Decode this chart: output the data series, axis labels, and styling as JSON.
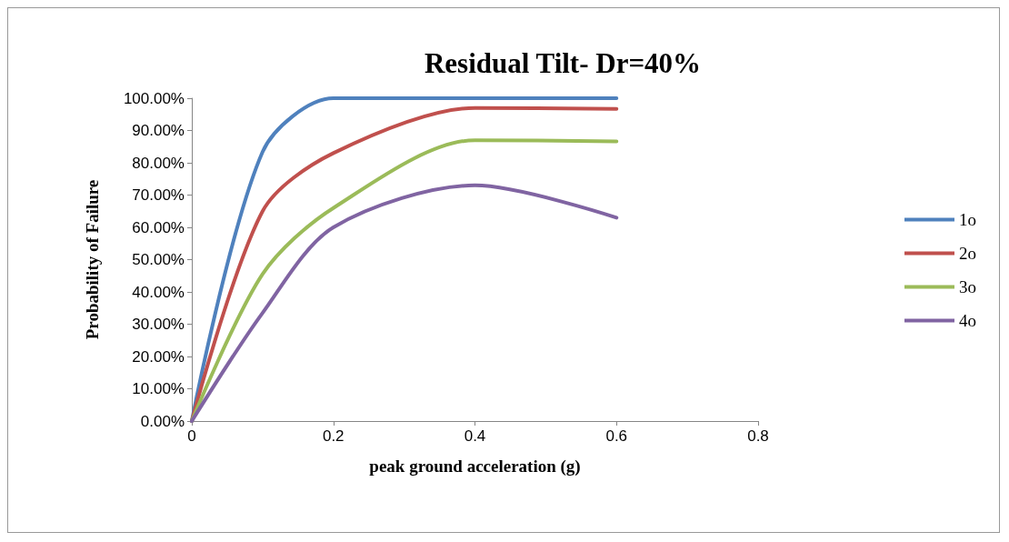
{
  "chart_data": {
    "type": "line",
    "title": "Residual Tilt- Dr=40%",
    "xlabel": "peak ground acceleration (g)",
    "ylabel": "Probability of Failure",
    "series": [
      {
        "name": "1o",
        "color": "#4f81bd",
        "x": [
          0,
          0.1,
          0.2,
          0.4,
          0.6
        ],
        "values": [
          0,
          83.4,
          100,
          100,
          100
        ]
      },
      {
        "name": "2o",
        "color": "#c0504d",
        "x": [
          0,
          0.1,
          0.2,
          0.4,
          0.6
        ],
        "values": [
          0,
          65,
          83,
          97,
          96.7
        ]
      },
      {
        "name": "3o",
        "color": "#9bbb59",
        "x": [
          0,
          0.1,
          0.2,
          0.4,
          0.6
        ],
        "values": [
          0,
          45.5,
          66,
          87,
          86.6
        ]
      },
      {
        "name": "4o",
        "color": "#8064a2",
        "x": [
          0,
          0.1,
          0.2,
          0.4,
          0.6
        ],
        "values": [
          0,
          33.5,
          60,
          73,
          63
        ]
      }
    ],
    "xlim": [
      0,
      0.8
    ],
    "xticks": [
      0,
      0.2,
      0.4,
      0.6,
      0.8
    ],
    "ylim": [
      0,
      100
    ],
    "yticks": [
      {
        "value": 0,
        "label": "0.00%"
      },
      {
        "value": 10,
        "label": "10.00%"
      },
      {
        "value": 20,
        "label": "20.00%"
      },
      {
        "value": 30,
        "label": "30.00%"
      },
      {
        "value": 40,
        "label": "40.00%"
      },
      {
        "value": 50,
        "label": "50.00%"
      },
      {
        "value": 60,
        "label": "60.00%"
      },
      {
        "value": 70,
        "label": "70.00%"
      },
      {
        "value": 80,
        "label": "80.00%"
      },
      {
        "value": 90,
        "label": "90.00%"
      },
      {
        "value": 100,
        "label": "100.00%"
      }
    ],
    "grid": false,
    "legend": "right",
    "marker": "none",
    "line_style": "solid"
  }
}
